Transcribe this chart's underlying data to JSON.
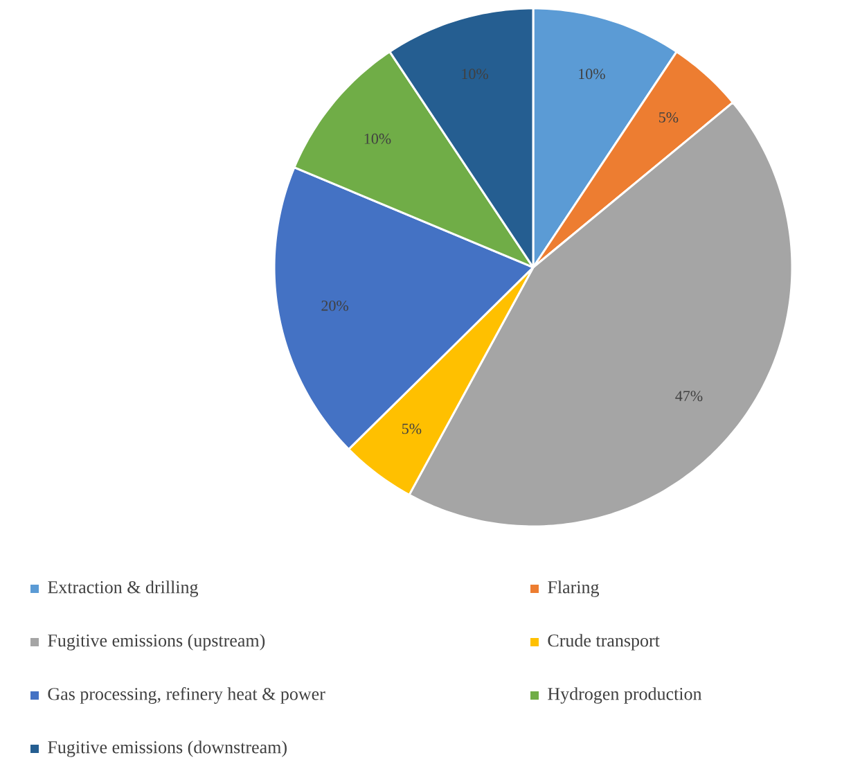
{
  "chart_data": {
    "type": "pie",
    "categories": [
      "Extraction & drilling",
      "Flaring",
      "Fugitive emissions (upstream)",
      "Crude transport",
      "Gas processing, refinery heat & power",
      "Hydrogen production",
      "Fugitive emissions (downstream)"
    ],
    "values": [
      10,
      5,
      47,
      5,
      20,
      10,
      10
    ],
    "colors": [
      "#5b9bd5",
      "#ed7d31",
      "#a5a5a5",
      "#ffc000",
      "#4472c4",
      "#70ad47",
      "#255e91"
    ],
    "value_labels": [
      "10%",
      "5%",
      "47%",
      "5%",
      "20%",
      "10%",
      "10%"
    ],
    "legend": "bottom"
  }
}
